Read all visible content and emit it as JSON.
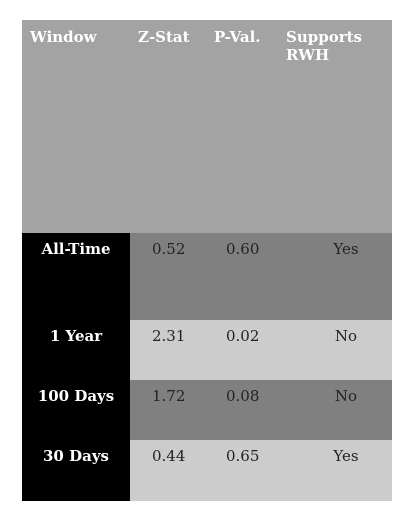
{
  "headers": {
    "window": "Window",
    "z_stat": "Z-Stat",
    "p_val": "P-Val.",
    "supports_line1": "Supports",
    "supports_line2": "RWH"
  },
  "rows": [
    {
      "window": "All-Time",
      "z_stat": "0.52",
      "p_val": "0.60",
      "supports": "Yes"
    },
    {
      "window": "1 Year",
      "z_stat": "2.31",
      "p_val": "0.02",
      "supports": "No"
    },
    {
      "window": "100 Days",
      "z_stat": "1.72",
      "p_val": "0.08",
      "supports": "No"
    },
    {
      "window": "30 Days",
      "z_stat": "0.44",
      "p_val": "0.65",
      "supports": "Yes"
    }
  ],
  "colors": {
    "header_bg": "#a3a3a3",
    "label_bg": "#000000",
    "row_dark": "#808080",
    "row_light": "#cccccc"
  }
}
